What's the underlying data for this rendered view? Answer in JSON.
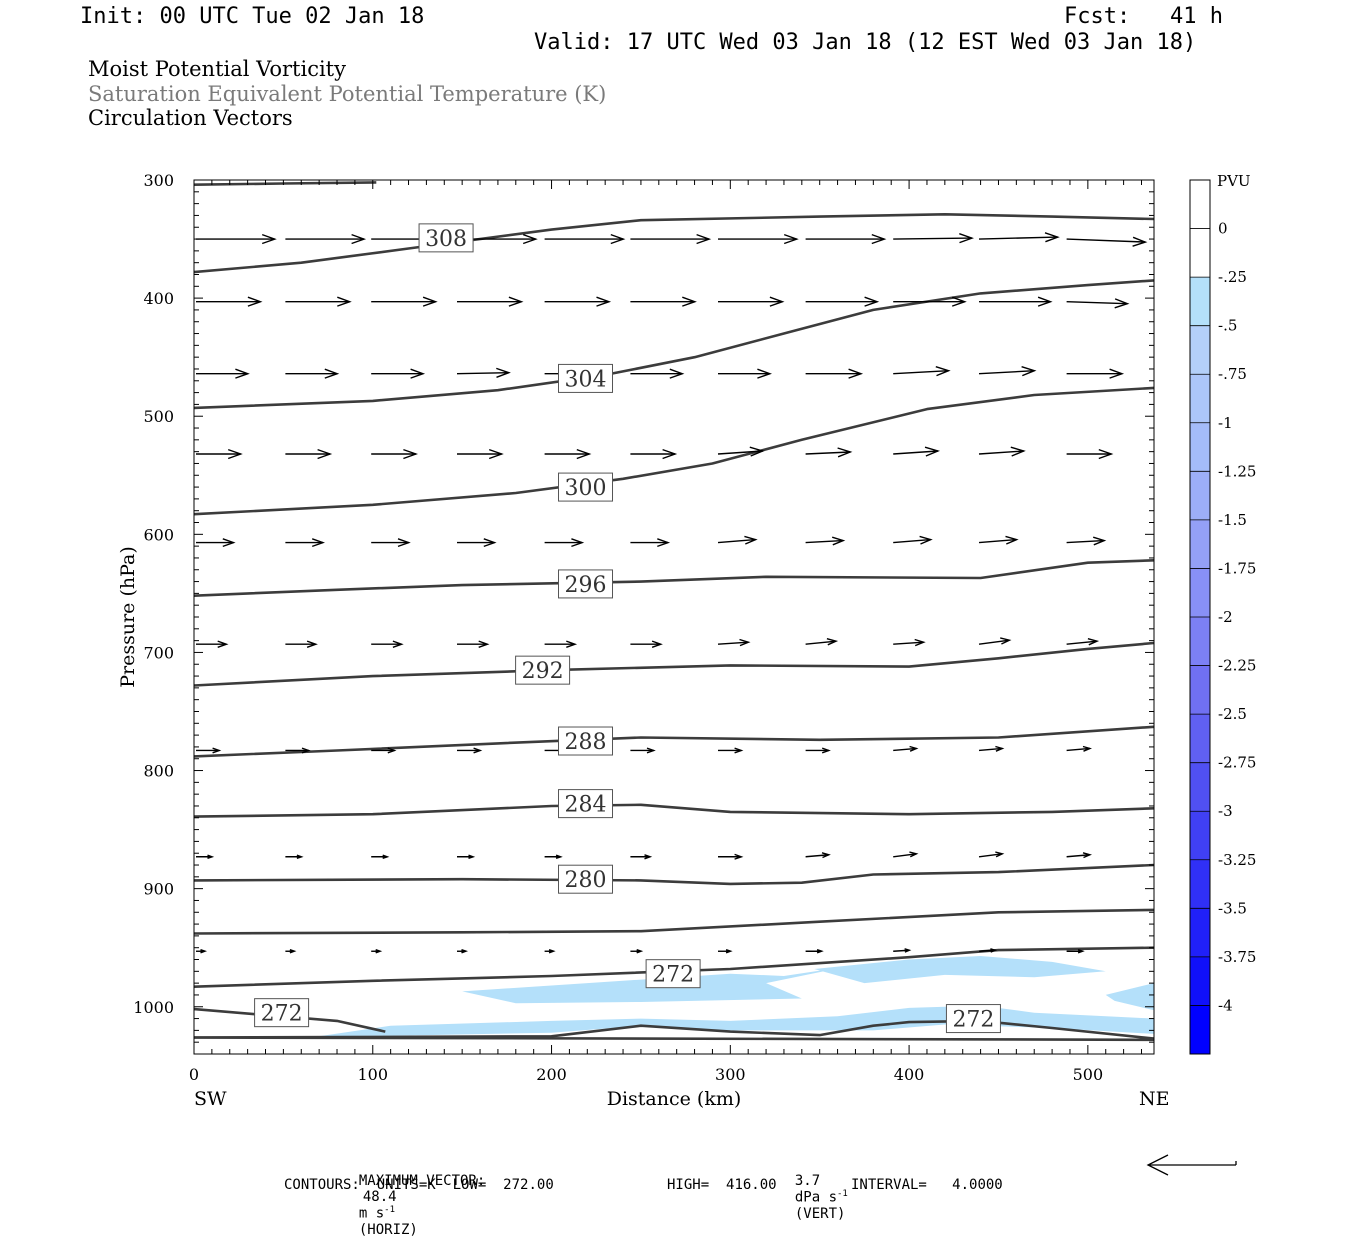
{
  "header": {
    "init": "Init: 00 UTC Tue 02 Jan 18",
    "fcst": "Fcst:   41 h",
    "valid": "Valid: 17 UTC Wed 03 Jan 18 (12 EST Wed 03 Jan 18)"
  },
  "titles": {
    "line1": "Moist Potential Vorticity",
    "line2": "Saturation Equivalent Potential Temperature (K)",
    "line3": "Circulation Vectors"
  },
  "chart_data": {
    "type": "contour",
    "ylabel": "Pressure (hPa)",
    "xlabel": "Distance (km)",
    "x_left_label": "SW",
    "x_right_label": "NE",
    "xlim": [
      0,
      537
    ],
    "ylim": [
      300,
      1040
    ],
    "y_inverted": true,
    "x_ticks": [
      0,
      100,
      200,
      300,
      400,
      500
    ],
    "y_ticks": [
      300,
      400,
      500,
      600,
      700,
      800,
      900,
      1000
    ],
    "contour_units": "K",
    "contour_color": "#3c3c3c",
    "contours": [
      {
        "pts": [
          [
            0,
            304
          ],
          [
            50,
            303
          ],
          [
            102,
            302
          ]
        ]
      },
      {
        "label": "308",
        "label_at": [
          141,
          349
        ],
        "pts": [
          [
            0,
            378
          ],
          [
            60,
            370
          ],
          [
            120,
            358
          ],
          [
            200,
            342
          ],
          [
            250,
            334
          ],
          [
            350,
            331
          ],
          [
            420,
            329
          ],
          [
            480,
            331
          ],
          [
            537,
            333
          ]
        ]
      },
      {
        "label": "304",
        "label_at": [
          219,
          468
        ],
        "pts": [
          [
            0,
            493
          ],
          [
            100,
            487
          ],
          [
            170,
            478
          ],
          [
            230,
            465
          ],
          [
            280,
            450
          ],
          [
            330,
            430
          ],
          [
            380,
            410
          ],
          [
            440,
            396
          ],
          [
            500,
            389
          ],
          [
            537,
            385
          ]
        ]
      },
      {
        "label": "300",
        "label_at": [
          219,
          560
        ],
        "pts": [
          [
            0,
            583
          ],
          [
            100,
            575
          ],
          [
            180,
            565
          ],
          [
            240,
            553
          ],
          [
            290,
            540
          ],
          [
            340,
            520
          ],
          [
            410,
            494
          ],
          [
            470,
            482
          ],
          [
            537,
            476
          ]
        ]
      },
      {
        "label": "296",
        "label_at": [
          219,
          642
        ],
        "pts": [
          [
            0,
            652
          ],
          [
            80,
            647
          ],
          [
            150,
            643
          ],
          [
            250,
            640
          ],
          [
            320,
            636
          ],
          [
            440,
            637
          ],
          [
            500,
            624
          ],
          [
            537,
            622
          ]
        ]
      },
      {
        "label": "292",
        "label_at": [
          195,
          715
        ],
        "pts": [
          [
            0,
            728
          ],
          [
            100,
            720
          ],
          [
            200,
            715
          ],
          [
            300,
            711
          ],
          [
            400,
            712
          ],
          [
            450,
            705
          ],
          [
            500,
            697
          ],
          [
            537,
            692
          ]
        ]
      },
      {
        "label": "288",
        "label_at": [
          219,
          775
        ],
        "pts": [
          [
            0,
            788
          ],
          [
            80,
            783
          ],
          [
            170,
            777
          ],
          [
            250,
            772
          ],
          [
            350,
            774
          ],
          [
            450,
            772
          ],
          [
            537,
            763
          ]
        ]
      },
      {
        "label": "284",
        "label_at": [
          219,
          828
        ],
        "pts": [
          [
            0,
            839
          ],
          [
            100,
            837
          ],
          [
            200,
            830
          ],
          [
            250,
            829
          ],
          [
            300,
            835
          ],
          [
            400,
            837
          ],
          [
            480,
            835
          ],
          [
            537,
            832
          ]
        ]
      },
      {
        "label": "280",
        "label_at": [
          219,
          892
        ],
        "pts": [
          [
            0,
            893
          ],
          [
            150,
            892
          ],
          [
            250,
            893
          ],
          [
            300,
            896
          ],
          [
            340,
            895
          ],
          [
            380,
            888
          ],
          [
            450,
            886
          ],
          [
            537,
            880
          ]
        ]
      },
      {
        "pts": [
          [
            0,
            938
          ],
          [
            150,
            937
          ],
          [
            250,
            936
          ],
          [
            350,
            928
          ],
          [
            450,
            920
          ],
          [
            537,
            918
          ]
        ]
      },
      {
        "label": "272",
        "label_at": [
          268,
          972
        ],
        "pts": [
          [
            0,
            983
          ],
          [
            100,
            978
          ],
          [
            200,
            974
          ],
          [
            300,
            968
          ],
          [
            400,
            958
          ],
          [
            450,
            952
          ],
          [
            537,
            950
          ]
        ]
      },
      {
        "label": "272",
        "label_at": [
          49,
          1005
        ],
        "pts": [
          [
            0,
            1002
          ],
          [
            40,
            1007
          ],
          [
            80,
            1012
          ],
          [
            107,
            1021
          ]
        ]
      },
      {
        "label": "272",
        "label_at": [
          436,
          1010
        ],
        "pts": [
          [
            0,
            1026
          ],
          [
            200,
            1025
          ],
          [
            250,
            1016
          ],
          [
            300,
            1021
          ],
          [
            350,
            1024
          ],
          [
            380,
            1016
          ],
          [
            400,
            1013
          ],
          [
            440,
            1012
          ],
          [
            480,
            1018
          ],
          [
            537,
            1027
          ]
        ]
      },
      {
        "pts": [
          [
            0,
            1026
          ],
          [
            537,
            1028
          ]
        ]
      }
    ],
    "vectors": [
      {
        "p": 350,
        "xs": [
          0,
          50,
          98,
          146,
          195,
          243,
          292,
          341,
          390,
          438,
          487
        ],
        "dx": [
          44,
          44,
          44,
          44,
          44,
          44,
          44,
          44,
          44,
          44,
          44
        ],
        "dp": [
          0,
          0,
          0,
          0,
          0,
          0,
          0,
          0,
          -1,
          -2,
          3
        ]
      },
      {
        "p": 403,
        "xs": [
          0,
          50,
          98,
          146,
          195,
          243,
          292,
          341,
          390,
          438,
          487
        ],
        "dx": [
          36,
          36,
          36,
          36,
          36,
          36,
          36,
          40,
          40,
          40,
          34
        ],
        "dp": [
          0,
          0,
          0,
          0,
          0,
          0,
          0,
          0,
          0,
          0,
          2
        ]
      },
      {
        "p": 464,
        "xs": [
          0,
          50,
          98,
          146,
          195,
          243,
          292,
          341,
          390,
          438,
          487
        ],
        "dx": [
          29,
          29,
          29,
          29,
          29,
          29,
          29,
          31,
          31,
          31,
          31
        ],
        "dp": [
          0,
          0,
          0,
          -1,
          0,
          0,
          0,
          0,
          -3,
          -3,
          0
        ]
      },
      {
        "p": 532,
        "xs": [
          0,
          50,
          98,
          146,
          195,
          243,
          292,
          341,
          390,
          438,
          487
        ],
        "dx": [
          25,
          25,
          25,
          25,
          25,
          25,
          25,
          25,
          25,
          25,
          25
        ],
        "dp": [
          0,
          0,
          0,
          0,
          0,
          0,
          -3,
          -2,
          -3,
          -3,
          0
        ]
      },
      {
        "p": 607,
        "xs": [
          0,
          50,
          98,
          146,
          195,
          243,
          292,
          341,
          390,
          438,
          487
        ],
        "dx": [
          21,
          21,
          21,
          21,
          21,
          21,
          21,
          21,
          21,
          21,
          21
        ],
        "dp": [
          0,
          0,
          0,
          0,
          0,
          0,
          -3,
          -2,
          -3,
          -3,
          -2
        ]
      },
      {
        "p": 693,
        "xs": [
          0,
          50,
          98,
          146,
          195,
          243,
          292,
          341,
          390,
          438,
          487
        ],
        "dx": [
          17,
          17,
          17,
          17,
          17,
          17,
          17,
          17,
          17,
          17,
          17
        ],
        "dp": [
          0,
          0,
          0,
          0,
          0,
          0,
          -2,
          -3,
          -2,
          -4,
          -3
        ]
      },
      {
        "p": 783,
        "xs": [
          0,
          50,
          98,
          146,
          195,
          243,
          292,
          341,
          390,
          438,
          487
        ],
        "dx": [
          13,
          13,
          13,
          13,
          13,
          13,
          13,
          13,
          13,
          13,
          13
        ],
        "dp": [
          0,
          0,
          0,
          0,
          0,
          0,
          0,
          0,
          -2,
          -2,
          -2
        ]
      },
      {
        "p": 873,
        "xs": [
          0,
          50,
          98,
          146,
          195,
          243,
          292,
          341,
          390,
          438,
          487
        ],
        "dx": [
          9,
          9,
          9,
          9,
          9,
          11,
          13,
          13,
          13,
          13,
          13
        ],
        "dp": [
          0,
          0,
          0,
          0,
          0,
          0,
          0,
          -2,
          -3,
          -3,
          -2
        ]
      },
      {
        "p": 953,
        "xs": [
          0,
          50,
          98,
          146,
          195,
          243,
          292,
          341,
          390,
          438,
          487
        ],
        "dx": [
          5,
          5,
          5,
          5,
          5,
          6,
          7,
          9,
          9,
          9,
          9
        ],
        "dp": [
          0,
          0,
          0,
          0,
          0,
          0,
          0,
          0,
          -1,
          -1,
          0
        ]
      }
    ],
    "mpv_fill_color": "#b4e0fa",
    "mpv_regions": [
      {
        "pts": [
          [
            150,
            987
          ],
          [
            220,
            980
          ],
          [
            300,
            972
          ],
          [
            330,
            974
          ],
          [
            365,
            966
          ],
          [
            320,
            980
          ],
          [
            340,
            993
          ],
          [
            250,
            996
          ],
          [
            180,
            997
          ]
        ]
      },
      {
        "pts": [
          [
            347,
            968
          ],
          [
            400,
            960
          ],
          [
            440,
            957
          ],
          [
            480,
            962
          ],
          [
            510,
            970
          ],
          [
            470,
            975
          ],
          [
            420,
            973
          ],
          [
            375,
            980
          ]
        ]
      },
      {
        "pts": [
          [
            510,
            990
          ],
          [
            537,
            980
          ],
          [
            537,
            1003
          ],
          [
            515,
            995
          ]
        ]
      },
      {
        "pts": [
          [
            70,
            1025
          ],
          [
            110,
            1016
          ],
          [
            200,
            1012
          ],
          [
            250,
            1010
          ],
          [
            300,
            1012
          ],
          [
            360,
            1008
          ],
          [
            400,
            1001
          ],
          [
            440,
            999
          ],
          [
            470,
            1005
          ],
          [
            537,
            1010
          ],
          [
            537,
            1023
          ],
          [
            480,
            1018
          ],
          [
            420,
            1015
          ],
          [
            380,
            1020
          ],
          [
            300,
            1020
          ],
          [
            250,
            1016
          ],
          [
            200,
            1022
          ],
          [
            130,
            1024
          ]
        ]
      }
    ],
    "colorbar": {
      "unit": "PVU",
      "labels": [
        "0",
        "-.25",
        "-.5",
        "-.75",
        "-1",
        "-1.25",
        "-1.5",
        "-1.75",
        "-2",
        "-2.25",
        "-2.5",
        "-2.75",
        "-3",
        "-3.25",
        "-3.5",
        "-3.75",
        "-4"
      ],
      "colors": [
        "#ffffff",
        "#ffffff",
        "#b4e0fa",
        "#b4d0fa",
        "#acc6fa",
        "#a4bcfa",
        "#9caef8",
        "#94a0f6",
        "#8890f6",
        "#7c80f4",
        "#7070f2",
        "#6060f2",
        "#5050f2",
        "#4040f4",
        "#3030f6",
        "#2020f8",
        "#1010fa",
        "#0000ff"
      ]
    },
    "max_vector_horiz_value": "48.4",
    "max_vector_vert_value": "3.7",
    "contour_units_value": "K",
    "contour_low": "272.00",
    "contour_high": "416.00",
    "contour_interval": "4.0000"
  },
  "footer": {
    "max_vector_label": "MAXIMUM VECTOR:",
    "horiz_value": "48.4",
    "horiz_units": "m s",
    "horiz_exp": "-1",
    "horiz_tag": "(HORIZ)",
    "vert_value": "3.7",
    "vert_units": "dPa s",
    "vert_exp": "-1",
    "vert_tag": "(VERT)",
    "contours_label": "CONTOURS:",
    "units_label": "UNITS=",
    "units_value": "K",
    "low_label": "LOW=",
    "low_value": "272.00",
    "high_label": "HIGH=",
    "high_value": "416.00",
    "interval_label": "INTERVAL=",
    "interval_value": "4.0000"
  }
}
